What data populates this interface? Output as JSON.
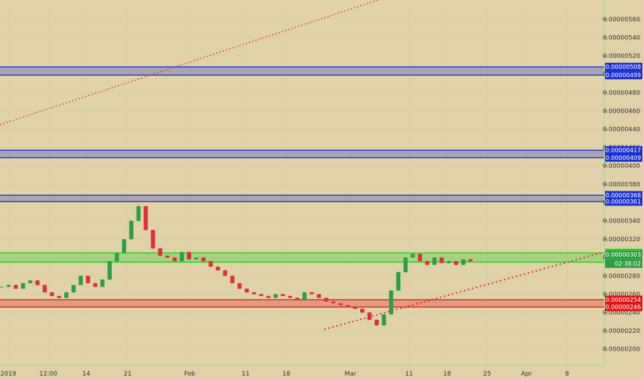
{
  "chart_data": {
    "type": "candlestick",
    "y_axis_ticks": [
      "0.00000560",
      "0.00000540",
      "0.00000520",
      "0.00000500",
      "0.00000480",
      "0.00000460",
      "0.00000440",
      "0.00000420",
      "0.00000400",
      "0.00000380",
      "0.00000360",
      "0.00000340",
      "0.00000320",
      "0.00000300",
      "0.00000280",
      "0.00000260",
      "0.00000240",
      "0.00000220",
      "0.00000200"
    ],
    "x_axis_ticks": [
      "2019",
      "12:00",
      "14",
      "21",
      "Feb",
      "11",
      "18",
      "Mar",
      "11",
      "18",
      "25",
      "Apr",
      "8"
    ],
    "ylim": [
      1.9e-06,
      5.75e-06
    ],
    "zones": [
      {
        "low": 4.99e-06,
        "high": 5.08e-06,
        "color": "#1a2fd1",
        "label_high": "0.00000508",
        "label_low": "0.00000499"
      },
      {
        "low": 4.09e-06,
        "high": 4.17e-06,
        "color": "#1a2fd1",
        "label_high": "0.00000417",
        "label_low": "0.00000409"
      },
      {
        "low": 3.61e-06,
        "high": 3.68e-06,
        "color": "#1a2fd1",
        "label_high": "0.00000368",
        "label_low": "0.00000361"
      },
      {
        "low": 2.95e-06,
        "high": 3.05e-06,
        "color": "#19d419",
        "label_high": "0.00000305",
        "label_low": "0.00000295"
      },
      {
        "low": 2.46e-06,
        "high": 2.54e-06,
        "color": "#e01515",
        "label_high": "0.00000254",
        "label_low": "0.00000246"
      }
    ],
    "last_price": "0.00000303",
    "countdown": "02:38:02",
    "price_series": [
      268,
      270,
      266,
      272,
      275,
      270,
      262,
      258,
      256,
      262,
      270,
      280,
      272,
      268,
      276,
      296,
      305,
      320,
      340,
      356,
      330,
      310,
      302,
      300,
      296,
      306,
      298,
      300,
      296,
      290,
      286,
      280,
      272,
      266,
      262,
      260,
      258,
      256,
      260,
      258,
      256,
      254,
      262,
      260,
      256,
      252,
      250,
      248,
      246,
      244,
      240,
      232,
      226,
      238,
      264,
      284,
      300,
      304,
      296,
      292,
      300,
      294,
      296,
      292,
      298,
      296
    ],
    "candle_colors": {
      "up": "#2e9e45",
      "down": "#e0303c"
    }
  }
}
